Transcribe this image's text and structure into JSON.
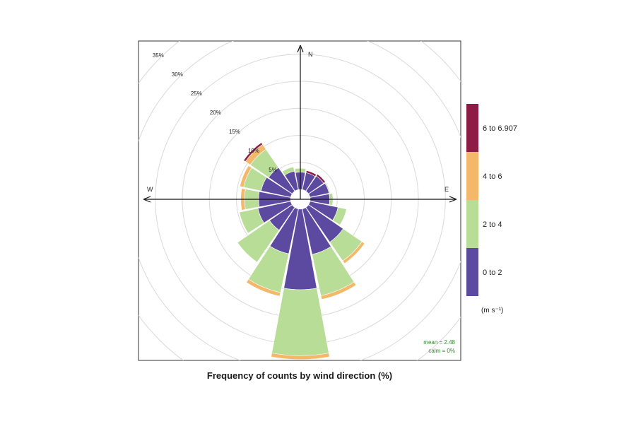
{
  "chart_data": {
    "type": "windrose",
    "xlabel": "Frequency of counts by wind direction (%)",
    "directions": [
      "N",
      "NNE",
      "NE",
      "ENE",
      "E",
      "ESE",
      "SE",
      "SSE",
      "S",
      "SSW",
      "SW",
      "WSW",
      "W",
      "WNW",
      "NW",
      "NNW"
    ],
    "series": [
      {
        "name": "0 to 2",
        "color": "#5b4aa0",
        "values": [
          3.2,
          3.2,
          3.4,
          3.6,
          3.6,
          5.3,
          7.8,
          8.6,
          14.9,
          8.5,
          5.1,
          6.2,
          5.9,
          5.6,
          5.3,
          3.5
        ]
      },
      {
        "name": "2 to 4",
        "color": "#b8dd96",
        "values": [
          0.7,
          0.0,
          0.0,
          0.2,
          0.6,
          1.6,
          4.2,
          7.8,
          12.2,
          7.3,
          7.2,
          3.5,
          2.6,
          3.3,
          4.1,
          0.8
        ]
      },
      {
        "name": "4 to 6",
        "color": "#f4b86a",
        "values": [
          0.0,
          0.0,
          0.0,
          0.0,
          0.0,
          0.0,
          0.6,
          0.7,
          0.7,
          0.7,
          0.0,
          0.0,
          0.7,
          0.7,
          1.1,
          0.0
        ]
      },
      {
        "name": "6 to 6.907",
        "color": "#8e1b45",
        "values": [
          0.0,
          0.4,
          0.4,
          0.0,
          0.0,
          0.0,
          0.0,
          0.0,
          0.0,
          0.0,
          0.0,
          0.0,
          0.0,
          0.0,
          0.4,
          0.0
        ]
      }
    ],
    "radial_max": 35,
    "radial_ticks": [
      5,
      10,
      15,
      20,
      25,
      30,
      35
    ],
    "radial_tick_labels": [
      "5%",
      "10%",
      "15%",
      "20%",
      "25%",
      "30%",
      "35%"
    ],
    "compass_labels": {
      "n": "N",
      "e": "E",
      "w": "W"
    },
    "legend": {
      "position": "right",
      "entries": [
        "6 to 6.907",
        "4 to 6",
        "2 to 4",
        "0 to 2"
      ],
      "colors": [
        "#8e1b45",
        "#f4b86a",
        "#b8dd96",
        "#5b4aa0"
      ],
      "units": "(m s⁻¹)"
    },
    "annotations": {
      "mean": "mean = 2.48",
      "calm": "calm = 0%"
    },
    "grid": true
  }
}
